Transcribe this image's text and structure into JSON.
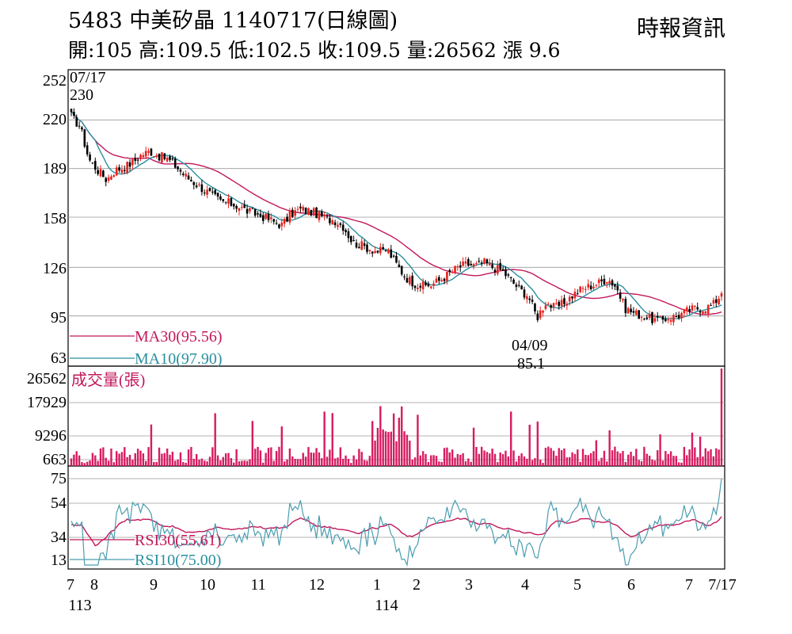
{
  "header": {
    "title": "5483  中美矽晶 1140717(日線圖)",
    "ohlc": "開:105 高:109.5 低:102.5 收:109.5 量:26562 漲 9.6",
    "source": "時報資訊"
  },
  "price_panel": {
    "y_ticks": [
      "252",
      "220",
      "189",
      "158",
      "126",
      "95",
      "63"
    ],
    "high_date": "07/17",
    "high_value": "230",
    "low_date": "04/09",
    "low_value": "85.1",
    "ma30_label": "MA30(95.56)",
    "ma10_label": "MA10(97.90)"
  },
  "volume_panel": {
    "y_ticks": [
      "26562",
      "17929",
      "9296",
      "663"
    ],
    "label": "成交量(張)"
  },
  "rsi_panel": {
    "y_ticks": [
      "75",
      "54",
      "34",
      "13"
    ],
    "rsi30_label": "RSI30(55.61)",
    "rsi10_label": "RSI10(75.00)"
  },
  "x_axis": {
    "month_labels": [
      "7",
      "8",
      "9",
      "10",
      "11",
      "12",
      "1",
      "2",
      "3",
      "4",
      "5",
      "6",
      "7",
      "7/17"
    ],
    "year_labels": [
      "113",
      "114"
    ]
  },
  "colors": {
    "up": "#e8211d",
    "down": "#000000",
    "ma30": "#c2185b",
    "ma10": "#2a8fa0",
    "volume": "#d81b60",
    "rsi30": "#c2185b",
    "rsi10": "#4a9db0",
    "grid": "#9a9a9a"
  },
  "chart_data": {
    "type": "candlestick",
    "price_range": [
      63,
      252
    ],
    "months": [
      "7",
      "8",
      "9",
      "10",
      "11",
      "12",
      "1",
      "2",
      "3",
      "4",
      "5",
      "6",
      "7"
    ],
    "close_by_month": [
      [
        222,
        216,
        195,
        188,
        182,
        188
      ],
      [
        190,
        193,
        198,
        200,
        197,
        195
      ],
      [
        190,
        184,
        180,
        176,
        172,
        168
      ],
      [
        167,
        165,
        162,
        160,
        158,
        155
      ],
      [
        153,
        160,
        163,
        162,
        160,
        157
      ],
      [
        156,
        152,
        142,
        140,
        138,
        136
      ],
      [
        137,
        128,
        120,
        116,
        114,
        115
      ],
      [
        118,
        122,
        126,
        128,
        127,
        129
      ],
      [
        126,
        124,
        118,
        112,
        108,
        94
      ],
      [
        104,
        100,
        103,
        108,
        112,
        114
      ],
      [
        116,
        119,
        114,
        100,
        97,
        95
      ],
      [
        93,
        92,
        94,
        95,
        98,
        100
      ],
      [
        100,
        102,
        109.5
      ]
    ],
    "events": [
      {
        "label": "high",
        "date": "07/17",
        "value": 230
      },
      {
        "label": "low",
        "date": "04/09",
        "value": 85.1
      }
    ],
    "series": [
      {
        "name": "MA30",
        "last": 95.56
      },
      {
        "name": "MA10",
        "last": 97.9
      },
      {
        "name": "RSI30",
        "last": 55.61
      },
      {
        "name": "RSI10",
        "last": 75.0
      }
    ],
    "volume": {
      "range": [
        663,
        26562
      ],
      "last": 26562
    },
    "rsi_range": [
      13,
      75
    ]
  }
}
